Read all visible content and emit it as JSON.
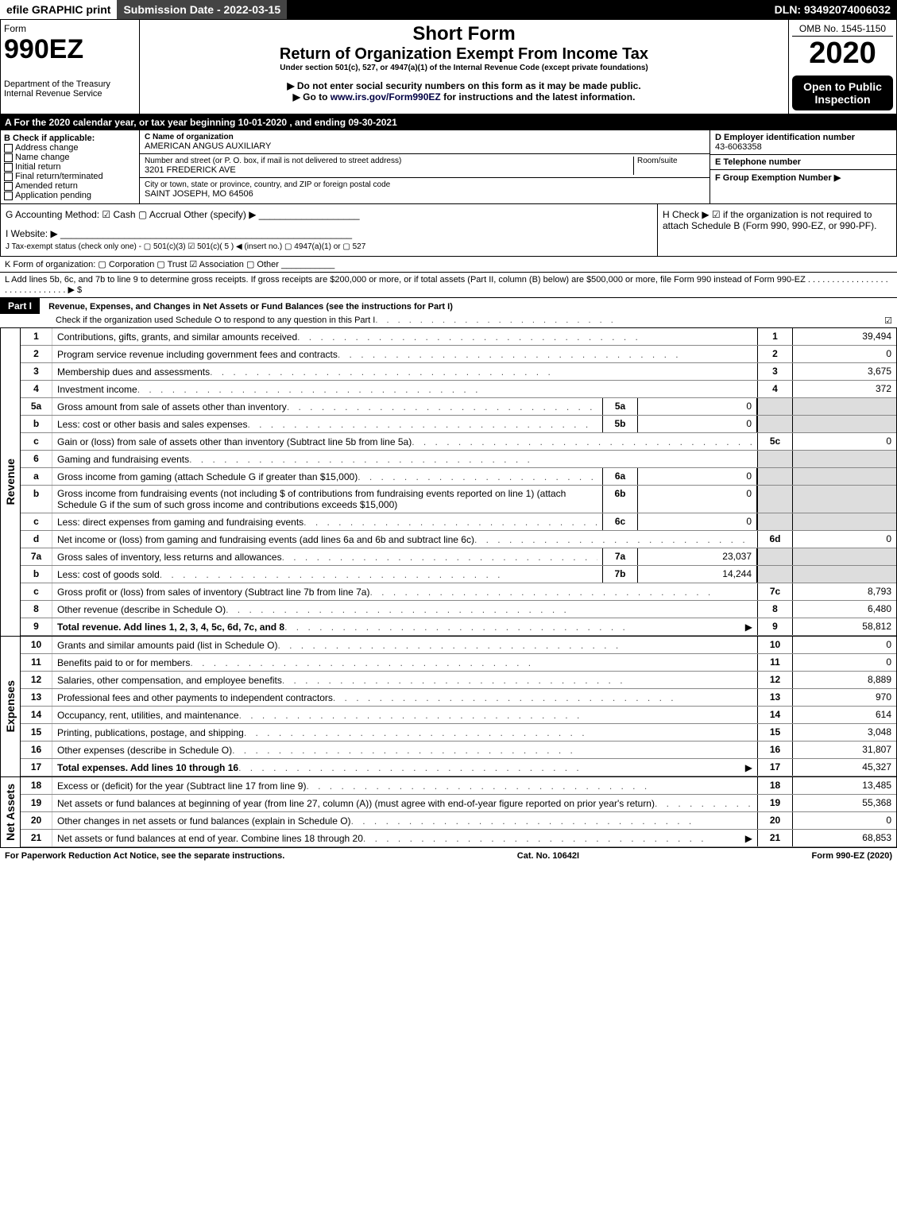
{
  "topbar": {
    "efile": "efile GRAPHIC print",
    "subdate": "Submission Date - 2022-03-15",
    "dln": "DLN: 93492074006032"
  },
  "header": {
    "form_word": "Form",
    "form_no": "990EZ",
    "dept": "Department of the Treasury\nInternal Revenue Service",
    "short_form": "Short Form",
    "title": "Return of Organization Exempt From Income Tax",
    "sub": "Under section 501(c), 527, or 4947(a)(1) of the Internal Revenue Code (except private foundations)",
    "note1": "▶ Do not enter social security numbers on this form as it may be made public.",
    "note2": "▶ Go to www.irs.gov/Form990EZ for instructions and the latest information.",
    "omb": "OMB No. 1545-1150",
    "year": "2020",
    "open": "Open to Public Inspection"
  },
  "A": "A For the 2020 calendar year, or tax year beginning 10-01-2020 , and ending 09-30-2021",
  "B": {
    "heading": "B Check if applicable:",
    "opts": [
      "Address change",
      "Name change",
      "Initial return",
      "Final return/terminated",
      "Amended return",
      "Application pending"
    ]
  },
  "C": {
    "label_name": "C Name of organization",
    "name": "AMERICAN ANGUS AUXILIARY",
    "label_addr": "Number and street (or P. O. box, if mail is not delivered to street address)",
    "room": "Room/suite",
    "addr": "3201 FREDERICK AVE",
    "label_city": "City or town, state or province, country, and ZIP or foreign postal code",
    "city": "SAINT JOSEPH, MO  64506"
  },
  "D": {
    "label": "D Employer identification number",
    "val": "43-6063358"
  },
  "E": {
    "label": "E Telephone number",
    "val": ""
  },
  "F": {
    "label": "F Group Exemption Number  ▶",
    "val": ""
  },
  "G": "G Accounting Method:  ☑ Cash  ▢ Accrual  Other (specify) ▶ ___________________",
  "H": "H  Check ▶ ☑ if the organization is not required to attach Schedule B (Form 990, 990-EZ, or 990-PF).",
  "I": "I Website: ▶ _______________________________________________________",
  "J": "J Tax-exempt status (check only one) - ▢ 501(c)(3) ☑ 501(c)( 5 ) ◀ (insert no.) ▢ 4947(a)(1) or ▢ 527",
  "K": "K Form of organization:  ▢ Corporation  ▢ Trust  ☑ Association  ▢ Other ___________",
  "L": "L Add lines 5b, 6c, and 7b to line 9 to determine gross receipts. If gross receipts are $200,000 or more, or if total assets (Part II, column (B) below) are $500,000 or more, file Form 990 instead of Form 990-EZ  .  .  .  .  .  .  .  .  .  .  .  .  .  .  .  .  .  .  .  .  .  .  .  .  .  .  .  .  .  .  ▶ $",
  "partI": {
    "label": "Part I",
    "title": "Revenue, Expenses, and Changes in Net Assets or Fund Balances (see the instructions for Part I)",
    "check": "Check if the organization used Schedule O to respond to any question in this Part I",
    "checked": "☑"
  },
  "groups": {
    "rev": "Revenue",
    "exp": "Expenses",
    "net": "Net Assets"
  },
  "lines": [
    {
      "n": "1",
      "d": "Contributions, gifts, grants, and similar amounts received",
      "ln": "1",
      "amt": "39,494"
    },
    {
      "n": "2",
      "d": "Program service revenue including government fees and contracts",
      "ln": "2",
      "amt": "0"
    },
    {
      "n": "3",
      "d": "Membership dues and assessments",
      "ln": "3",
      "amt": "3,675"
    },
    {
      "n": "4",
      "d": "Investment income",
      "ln": "4",
      "amt": "372"
    },
    {
      "n": "5a",
      "d": "Gross amount from sale of assets other than inventory",
      "sub": "5a",
      "subv": "0"
    },
    {
      "n": "b",
      "d": "Less: cost or other basis and sales expenses",
      "sub": "5b",
      "subv": "0"
    },
    {
      "n": "c",
      "d": "Gain or (loss) from sale of assets other than inventory (Subtract line 5b from line 5a)",
      "ln": "5c",
      "amt": "0"
    },
    {
      "n": "6",
      "d": "Gaming and fundraising events"
    },
    {
      "n": "a",
      "d": "Gross income from gaming (attach Schedule G if greater than $15,000)",
      "sub": "6a",
      "subv": "0"
    },
    {
      "n": "b",
      "d": "Gross income from fundraising events (not including $                 of contributions from fundraising events reported on line 1) (attach Schedule G if the sum of such gross income and contributions exceeds $15,000)",
      "sub": "6b",
      "subv": "0"
    },
    {
      "n": "c",
      "d": "Less: direct expenses from gaming and fundraising events",
      "sub": "6c",
      "subv": "0"
    },
    {
      "n": "d",
      "d": "Net income or (loss) from gaming and fundraising events (add lines 6a and 6b and subtract line 6c)",
      "ln": "6d",
      "amt": "0"
    },
    {
      "n": "7a",
      "d": "Gross sales of inventory, less returns and allowances",
      "sub": "7a",
      "subv": "23,037"
    },
    {
      "n": "b",
      "d": "Less: cost of goods sold",
      "sub": "7b",
      "subv": "14,244"
    },
    {
      "n": "c",
      "d": "Gross profit or (loss) from sales of inventory (Subtract line 7b from line 7a)",
      "ln": "7c",
      "amt": "8,793"
    },
    {
      "n": "8",
      "d": "Other revenue (describe in Schedule O)",
      "ln": "8",
      "amt": "6,480"
    },
    {
      "n": "9",
      "d": "Total revenue. Add lines 1, 2, 3, 4, 5c, 6d, 7c, and 8",
      "ln": "9",
      "amt": "58,812",
      "bold": true,
      "arrow": true
    }
  ],
  "exp_lines": [
    {
      "n": "10",
      "d": "Grants and similar amounts paid (list in Schedule O)",
      "ln": "10",
      "amt": "0"
    },
    {
      "n": "11",
      "d": "Benefits paid to or for members",
      "ln": "11",
      "amt": "0"
    },
    {
      "n": "12",
      "d": "Salaries, other compensation, and employee benefits",
      "ln": "12",
      "amt": "8,889"
    },
    {
      "n": "13",
      "d": "Professional fees and other payments to independent contractors",
      "ln": "13",
      "amt": "970"
    },
    {
      "n": "14",
      "d": "Occupancy, rent, utilities, and maintenance",
      "ln": "14",
      "amt": "614"
    },
    {
      "n": "15",
      "d": "Printing, publications, postage, and shipping",
      "ln": "15",
      "amt": "3,048"
    },
    {
      "n": "16",
      "d": "Other expenses (describe in Schedule O)",
      "ln": "16",
      "amt": "31,807"
    },
    {
      "n": "17",
      "d": "Total expenses. Add lines 10 through 16",
      "ln": "17",
      "amt": "45,327",
      "bold": true,
      "arrow": true
    }
  ],
  "net_lines": [
    {
      "n": "18",
      "d": "Excess or (deficit) for the year (Subtract line 17 from line 9)",
      "ln": "18",
      "amt": "13,485"
    },
    {
      "n": "19",
      "d": "Net assets or fund balances at beginning of year (from line 27, column (A)) (must agree with end-of-year figure reported on prior year's return)",
      "ln": "19",
      "amt": "55,368"
    },
    {
      "n": "20",
      "d": "Other changes in net assets or fund balances (explain in Schedule O)",
      "ln": "20",
      "amt": "0"
    },
    {
      "n": "21",
      "d": "Net assets or fund balances at end of year. Combine lines 18 through 20",
      "ln": "21",
      "amt": "68,853",
      "arrow": true
    }
  ],
  "footer": {
    "left": "For Paperwork Reduction Act Notice, see the separate instructions.",
    "mid": "Cat. No. 10642I",
    "right": "Form 990-EZ (2020)"
  }
}
